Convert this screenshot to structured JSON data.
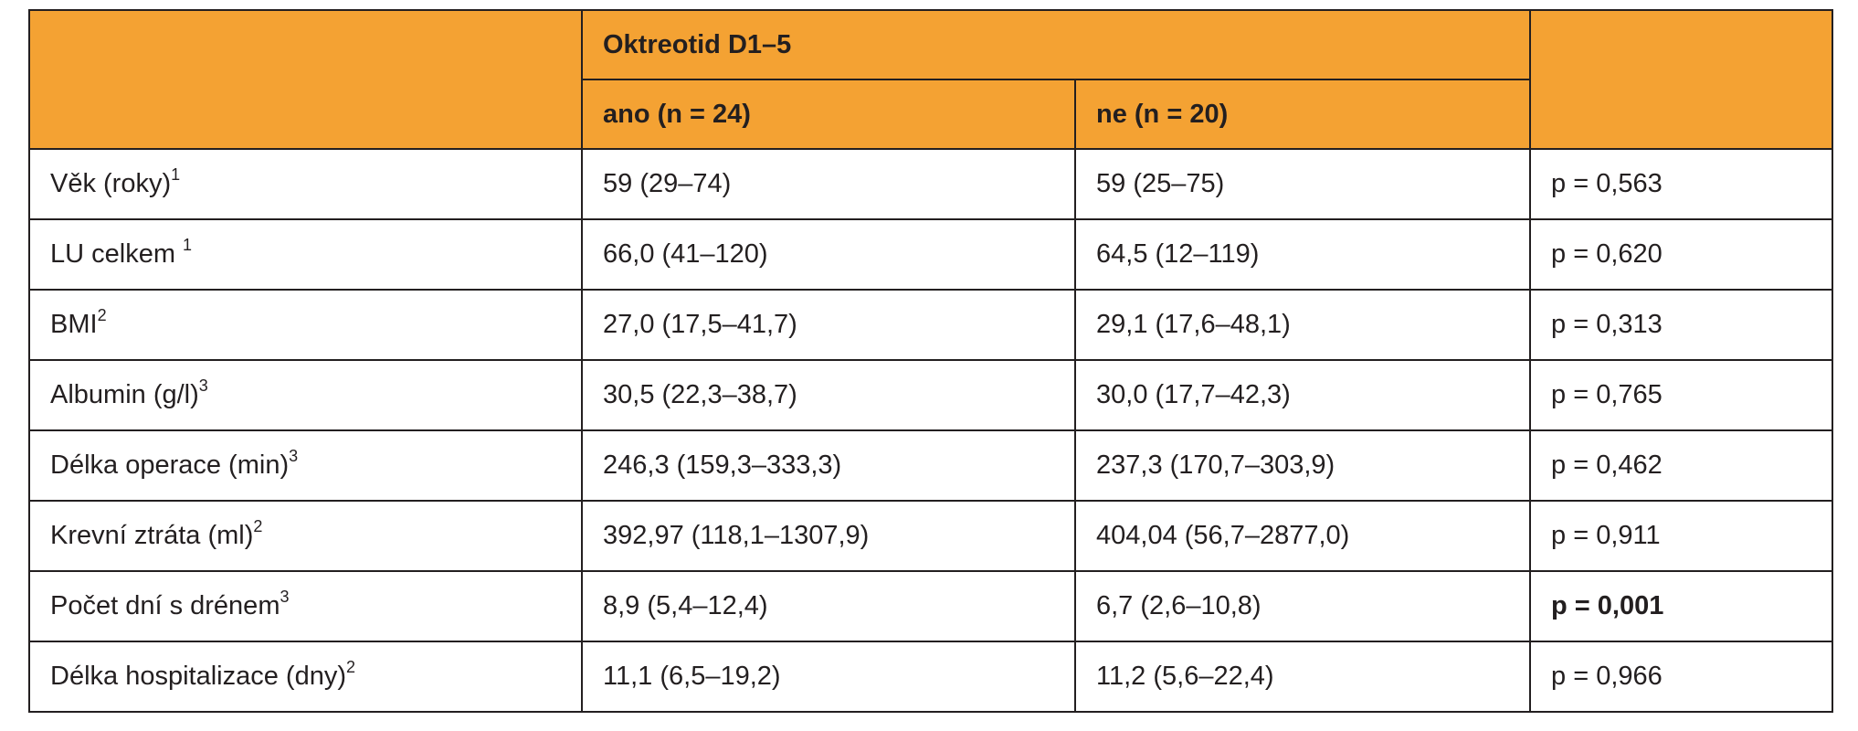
{
  "table": {
    "group_header": "Oktreotid D1–5",
    "subheaders": [
      "ano (n = 24)",
      "ne (n = 20)"
    ],
    "rows": [
      {
        "label": "Věk (roky)",
        "sup": "1",
        "yes": "59 (29–74)",
        "no": "59 (25–75)",
        "p": "p = 0,563",
        "p_bold": false
      },
      {
        "label": "LU celkem ",
        "sup": "1",
        "yes": "66,0 (41–120)",
        "no": "64,5 (12–119)",
        "p": "p = 0,620",
        "p_bold": false
      },
      {
        "label": "BMI",
        "sup": "2",
        "yes": "27,0 (17,5–41,7)",
        "no": "29,1 (17,6–48,1)",
        "p": "p = 0,313",
        "p_bold": false
      },
      {
        "label": "Albumin (g/l)",
        "sup": "3",
        "yes": "30,5 (22,3–38,7)",
        "no": "30,0 (17,7–42,3)",
        "p": "p = 0,765",
        "p_bold": false
      },
      {
        "label": "Délka operace (min)",
        "sup": "3",
        "yes": "246,3 (159,3–333,3)",
        "no": "237,3 (170,7–303,9)",
        "p": "p = 0,462",
        "p_bold": false
      },
      {
        "label": "Krevní ztráta (ml)",
        "sup": "2",
        "yes": "392,97 (118,1–1307,9)",
        "no": "404,04 (56,7–2877,0)",
        "p": "p = 0,911",
        "p_bold": false
      },
      {
        "label": "Počet dní s drénem",
        "sup": "3",
        "yes": "8,9 (5,4–12,4)",
        "no": "6,7 (2,6–10,8)",
        "p": "p = 0,001",
        "p_bold": true
      },
      {
        "label": "Délka hospitalizace (dny)",
        "sup": "2",
        "yes": "11,1 (6,5–19,2)",
        "no": "11,2 (5,6–22,4)",
        "p": "p = 0,966",
        "p_bold": false
      }
    ]
  },
  "colors": {
    "header_fill": "#f4a233",
    "border": "#231f20",
    "text": "#231f20"
  }
}
